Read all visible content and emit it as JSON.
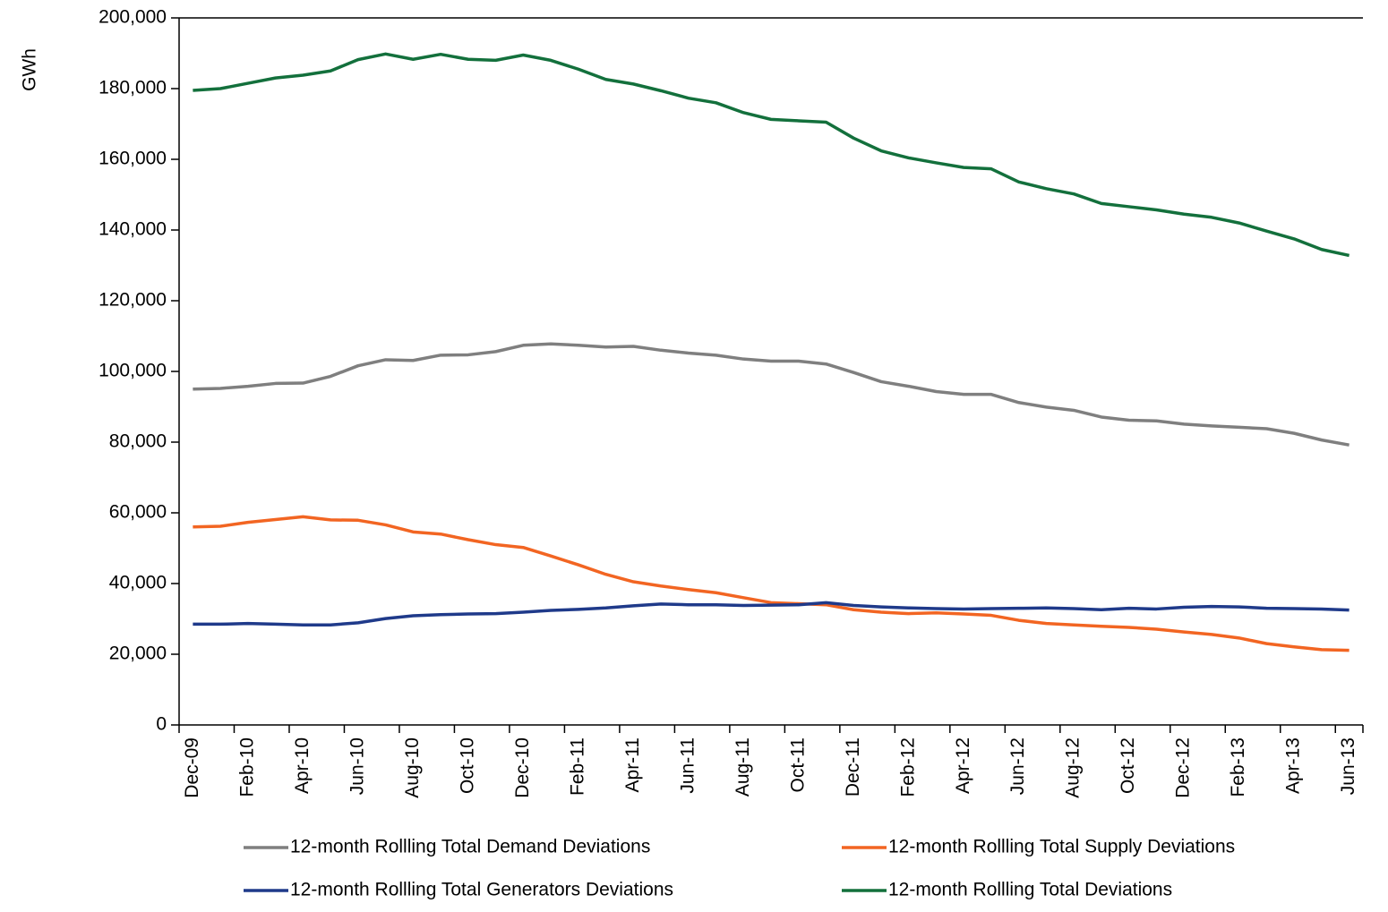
{
  "chart_data": {
    "type": "line",
    "y_label": "GWh",
    "categories": [
      "Dec-09",
      null,
      "Feb-10",
      null,
      "Apr-10",
      null,
      "Jun-10",
      null,
      "Aug-10",
      null,
      "Oct-10",
      null,
      "Dec-10",
      null,
      "Feb-11",
      null,
      "Apr-11",
      null,
      "Jun-11",
      null,
      "Aug-11",
      null,
      "Oct-11",
      null,
      "Dec-11",
      null,
      "Feb-12",
      null,
      "Apr-12",
      null,
      "Jun-12",
      null,
      "Aug-12",
      null,
      "Oct-12",
      null,
      "Dec-12",
      null,
      "Feb-13",
      null,
      "Apr-13",
      null,
      "Jun-13"
    ],
    "series": [
      {
        "name": "12-month Rollling Total Demand Deviations",
        "color": "#7f7f7f",
        "values": [
          95000,
          95200,
          95800,
          96600,
          96700,
          98600,
          101600,
          103300,
          103100,
          104600,
          104700,
          105600,
          107400,
          107800,
          107400,
          106900,
          107100,
          106000,
          105200,
          104600,
          103500,
          102900,
          102900,
          102100,
          99700,
          97100,
          95800,
          94300,
          93500,
          93500,
          91200,
          89900,
          89000,
          87100,
          86200,
          86000,
          85100,
          84600,
          84200,
          83800,
          82500,
          80600,
          79200
        ]
      },
      {
        "name": "12-month Rollling Total Supply Deviations",
        "color": "#f26522",
        "values": [
          56000,
          56200,
          57300,
          58100,
          58900,
          58000,
          57900,
          56600,
          54600,
          54000,
          52400,
          51000,
          50200,
          47800,
          45300,
          42600,
          40500,
          39300,
          38300,
          37400,
          36000,
          34600,
          34300,
          34000,
          32600,
          31900,
          31500,
          31700,
          31400,
          31000,
          29600,
          28700,
          28300,
          27900,
          27600,
          27100,
          26300,
          25600,
          24600,
          23000,
          22100,
          21300,
          21100
        ]
      },
      {
        "name": "12-month Rollling Total Generators Deviations",
        "color": "#1f3a8a",
        "values": [
          28500,
          28500,
          28700,
          28500,
          28300,
          28300,
          28900,
          30100,
          30900,
          31200,
          31400,
          31500,
          31900,
          32400,
          32700,
          33100,
          33700,
          34200,
          34000,
          34000,
          33800,
          33900,
          34000,
          34600,
          33800,
          33400,
          33100,
          32900,
          32800,
          32900,
          33000,
          33100,
          32900,
          32600,
          33000,
          32800,
          33300,
          33500,
          33400,
          33000,
          32900,
          32800,
          32500
        ]
      },
      {
        "name": "12-month Rollling Total Deviations",
        "color": "#13703c",
        "values": [
          179500,
          180000,
          181500,
          183000,
          183800,
          185000,
          188200,
          189800,
          188300,
          189700,
          188300,
          188000,
          189500,
          188000,
          185500,
          182600,
          181300,
          179400,
          177300,
          176000,
          173200,
          171300,
          170900,
          170500,
          166000,
          162400,
          160400,
          159000,
          157700,
          157300,
          153600,
          151700,
          150200,
          147500,
          146600,
          145700,
          144500,
          143600,
          142000,
          139700,
          137500,
          134500,
          132800
        ]
      }
    ],
    "ylim": [
      0,
      200000
    ],
    "yticks": [
      0,
      {
        "value": 20000,
        "label": "20,000"
      },
      {
        "value": 40000,
        "label": "40,000"
      },
      {
        "value": 60000,
        "label": "60,000"
      },
      {
        "value": 80000,
        "label": "80,000"
      },
      {
        "value": 100000,
        "label": "100,000"
      },
      {
        "value": 120000,
        "label": "120,000"
      },
      {
        "value": 140000,
        "label": "140,000"
      },
      {
        "value": 160000,
        "label": "160,000"
      },
      {
        "value": 180000,
        "label": "180,000"
      },
      {
        "value": 200000,
        "label": "200,000"
      }
    ],
    "grid": false
  }
}
